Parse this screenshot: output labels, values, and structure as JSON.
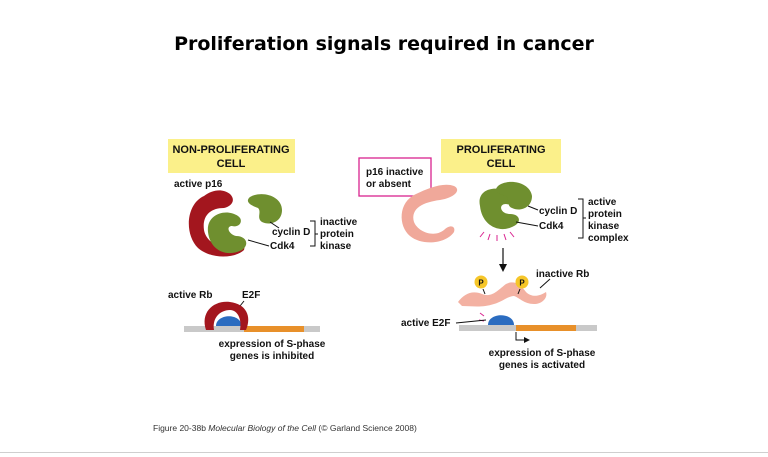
{
  "title": "Proliferation signals required in cancer",
  "left_panel": {
    "header_line1": "NON-PROLIFERATING",
    "header_line2": "CELL",
    "active_p16": "active p16",
    "cyclin_d": "cyclin D",
    "cdk4": "Cdk4",
    "state_line1": "inactive",
    "state_line2": "protein",
    "state_line3": "kinase",
    "active_rb": "active Rb",
    "e2f": "E2F",
    "expression_line1": "expression of S-phase",
    "expression_line2": "genes is inhibited"
  },
  "right_panel": {
    "header_line1": "PROLIFERATING",
    "header_line2": "CELL",
    "p16_line1": "p16 inactive",
    "p16_line2": "or absent",
    "cyclin_d": "cyclin D",
    "cdk4": "Cdk4",
    "state_line1": "active",
    "state_line2": "protein",
    "state_line3": "kinase",
    "state_line4": "complex",
    "phospho_1": "P",
    "phospho_2": "P",
    "inactive_rb": "inactive Rb",
    "active_e2f": "active E2F",
    "expression_line1": "expression of S-phase",
    "expression_line2": "genes is activated"
  },
  "caption": {
    "figure_ref": "Figure 20-38b",
    "book_title": "Molecular Biology of the Cell",
    "publisher": "(© Garland Science 2008)"
  },
  "colors": {
    "header_fill": "#fbf08a",
    "p16_active": "#a3161e",
    "p16_inactive": "#f0a89a",
    "cdk_green": "#6f8f2f",
    "rb_inactive": "#f3b1a2",
    "e2f_blue": "#2b6cc0",
    "dna_gray": "#c9c9c9",
    "gene_orange": "#e8902a",
    "phospho_yellow": "#f6c629",
    "annotation_box": "#d9238f"
  }
}
